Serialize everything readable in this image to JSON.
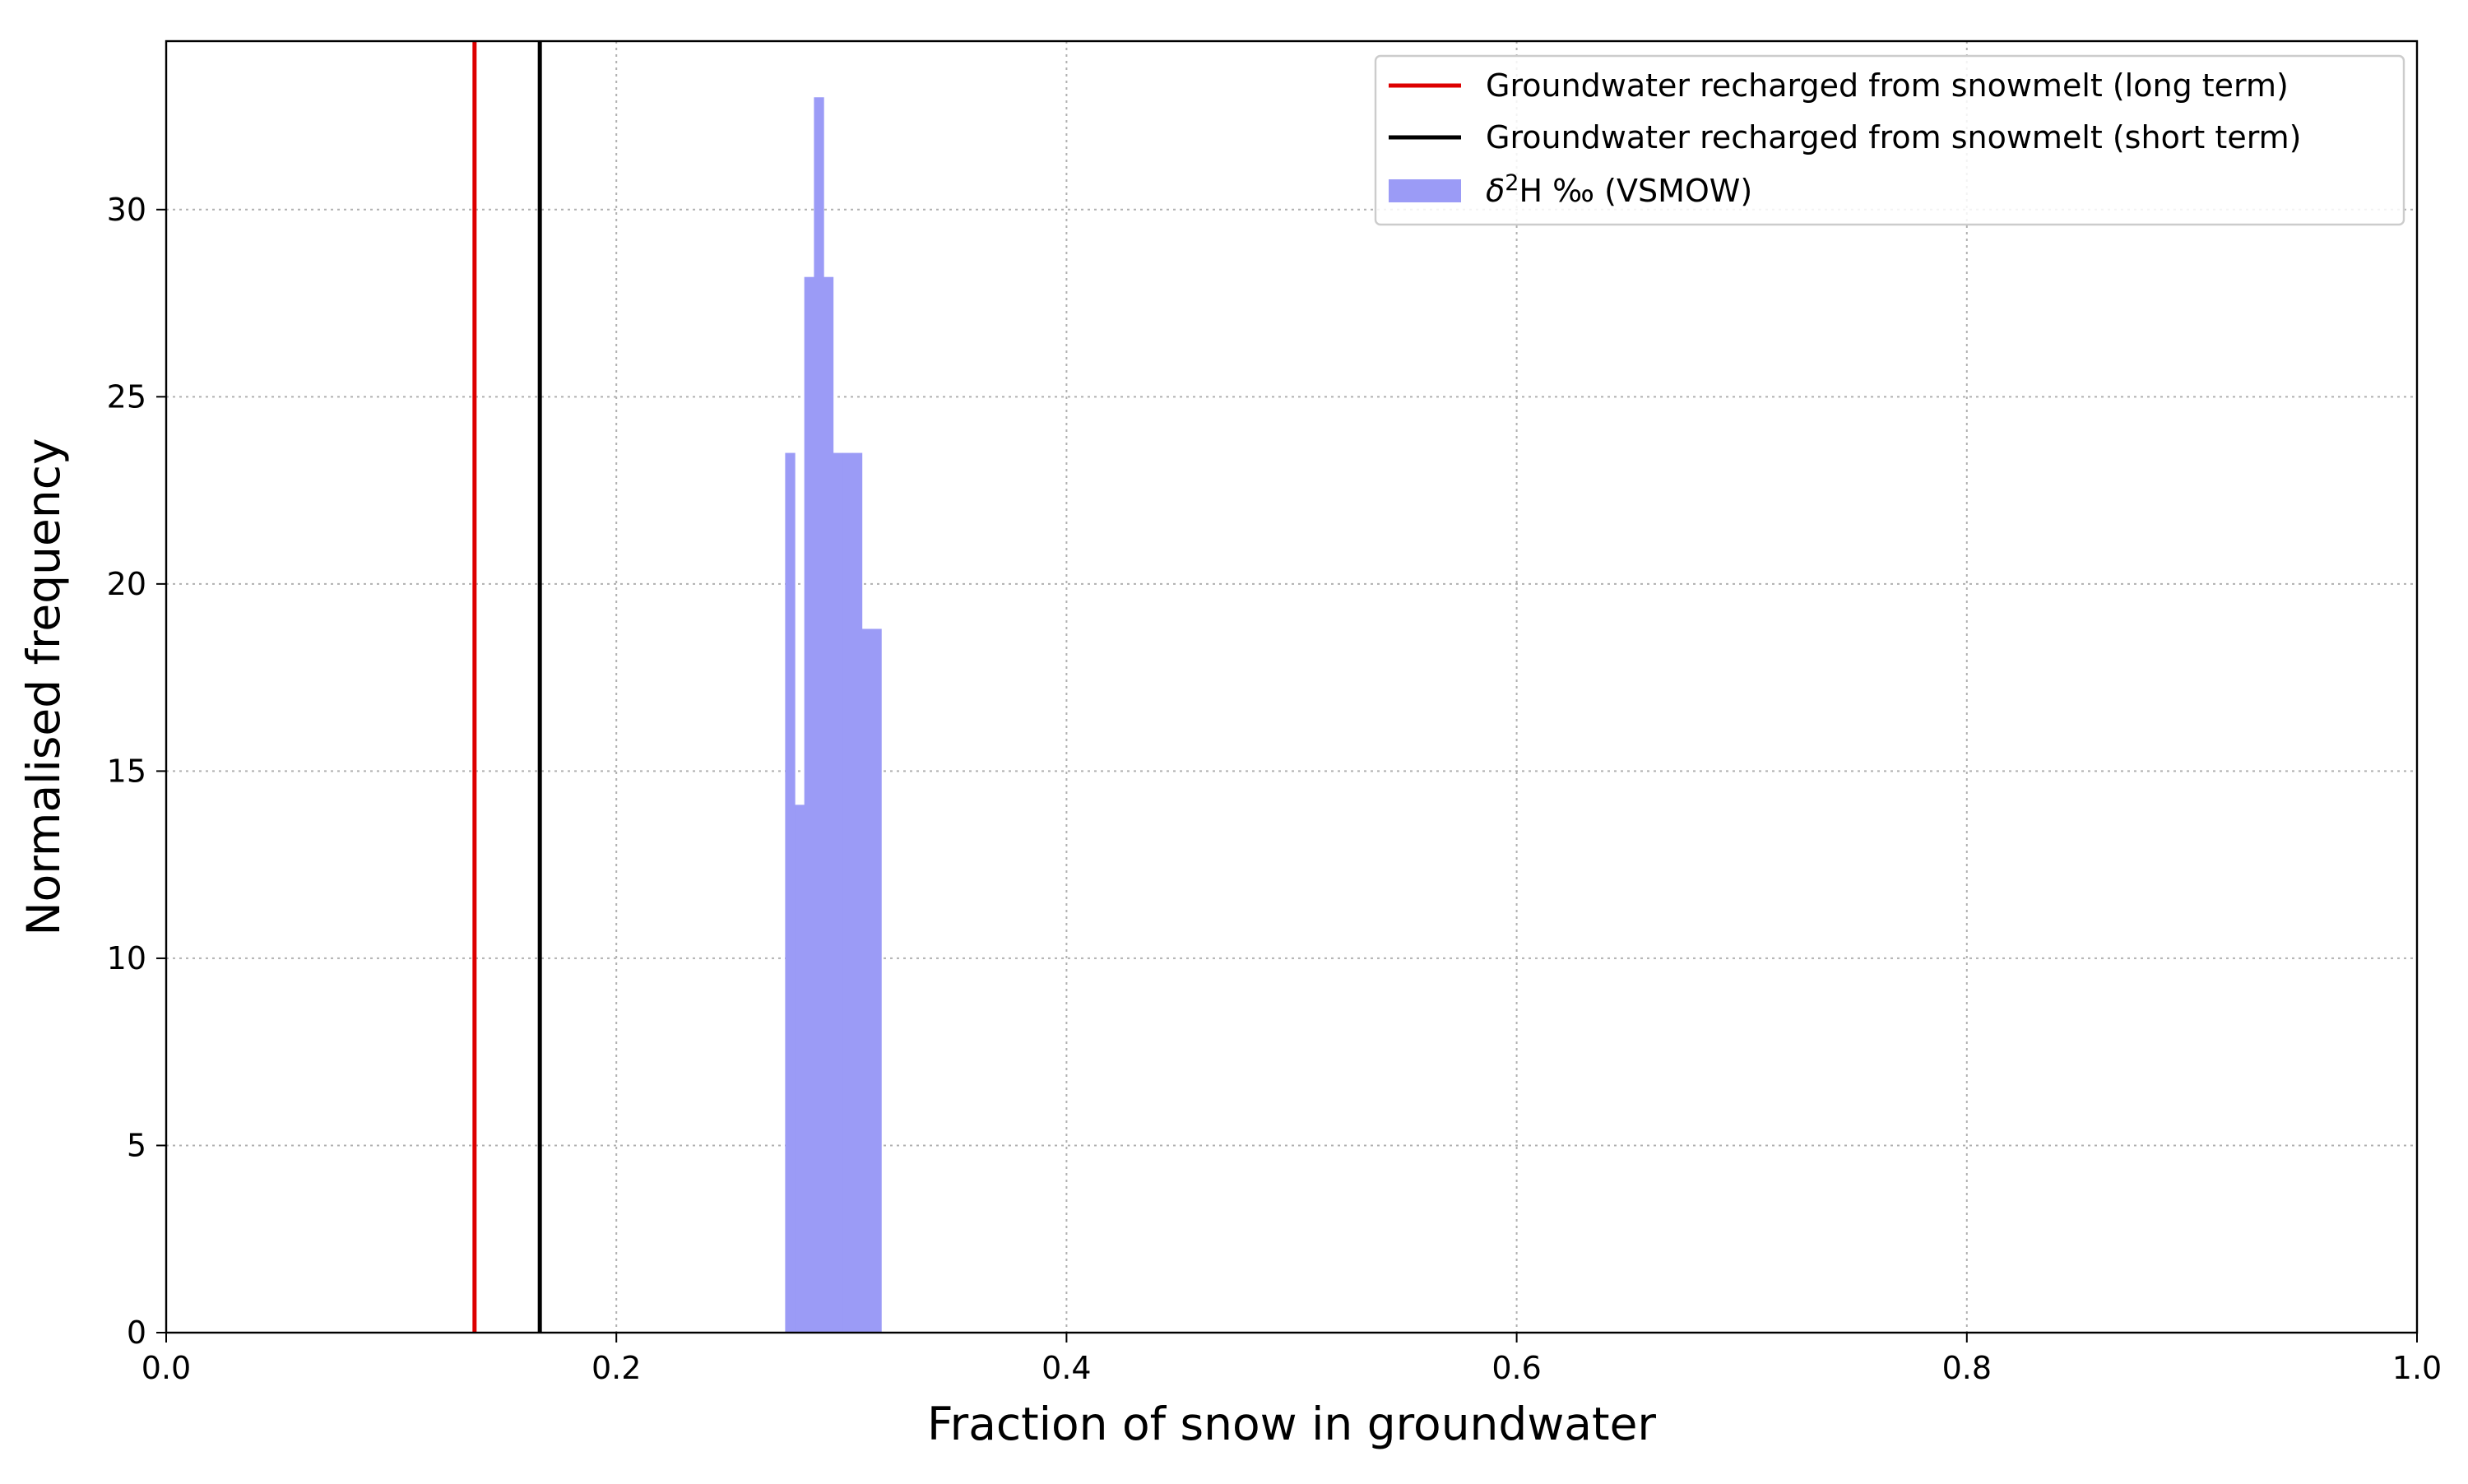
{
  "chart_data": {
    "type": "bar",
    "title": "",
    "xlabel": "Fraction of snow in groundwater",
    "ylabel": "Normalised frequency",
    "xlim": [
      0.0,
      1.0
    ],
    "ylim": [
      0,
      34.5
    ],
    "x_ticks": [
      0.0,
      0.2,
      0.4,
      0.6,
      0.8,
      1.0
    ],
    "x_tick_labels": [
      "0.0",
      "0.2",
      "0.4",
      "0.6",
      "0.8",
      "1.0"
    ],
    "y_ticks": [
      0,
      5,
      10,
      15,
      20,
      25,
      30
    ],
    "y_tick_labels": [
      "0",
      "5",
      "10",
      "15",
      "20",
      "25",
      "30"
    ],
    "grid": true,
    "legend_position": "top-right",
    "vlines": [
      {
        "name": "Groundwater recharged from snowmelt (long term)",
        "x": 0.137,
        "color": "#dd0000"
      },
      {
        "name": "Groundwater recharged from snowmelt (short term)",
        "x": 0.166,
        "color": "#000000"
      }
    ],
    "histogram": {
      "name": "δ²H ‰ (VSMOW)",
      "name_base": "δ",
      "name_sup": "2",
      "name_rest": "H ‰ (VSMOW)",
      "color": "#9b9bf6",
      "bin_edges": [
        0.275,
        0.2793,
        0.2835,
        0.2878,
        0.2921,
        0.2963,
        0.3006,
        0.3049,
        0.3091,
        0.3134,
        0.3177
      ],
      "values": [
        23.5,
        14.1,
        28.2,
        33.0,
        28.2,
        23.5,
        23.5,
        23.5,
        18.8,
        18.8
      ]
    }
  }
}
